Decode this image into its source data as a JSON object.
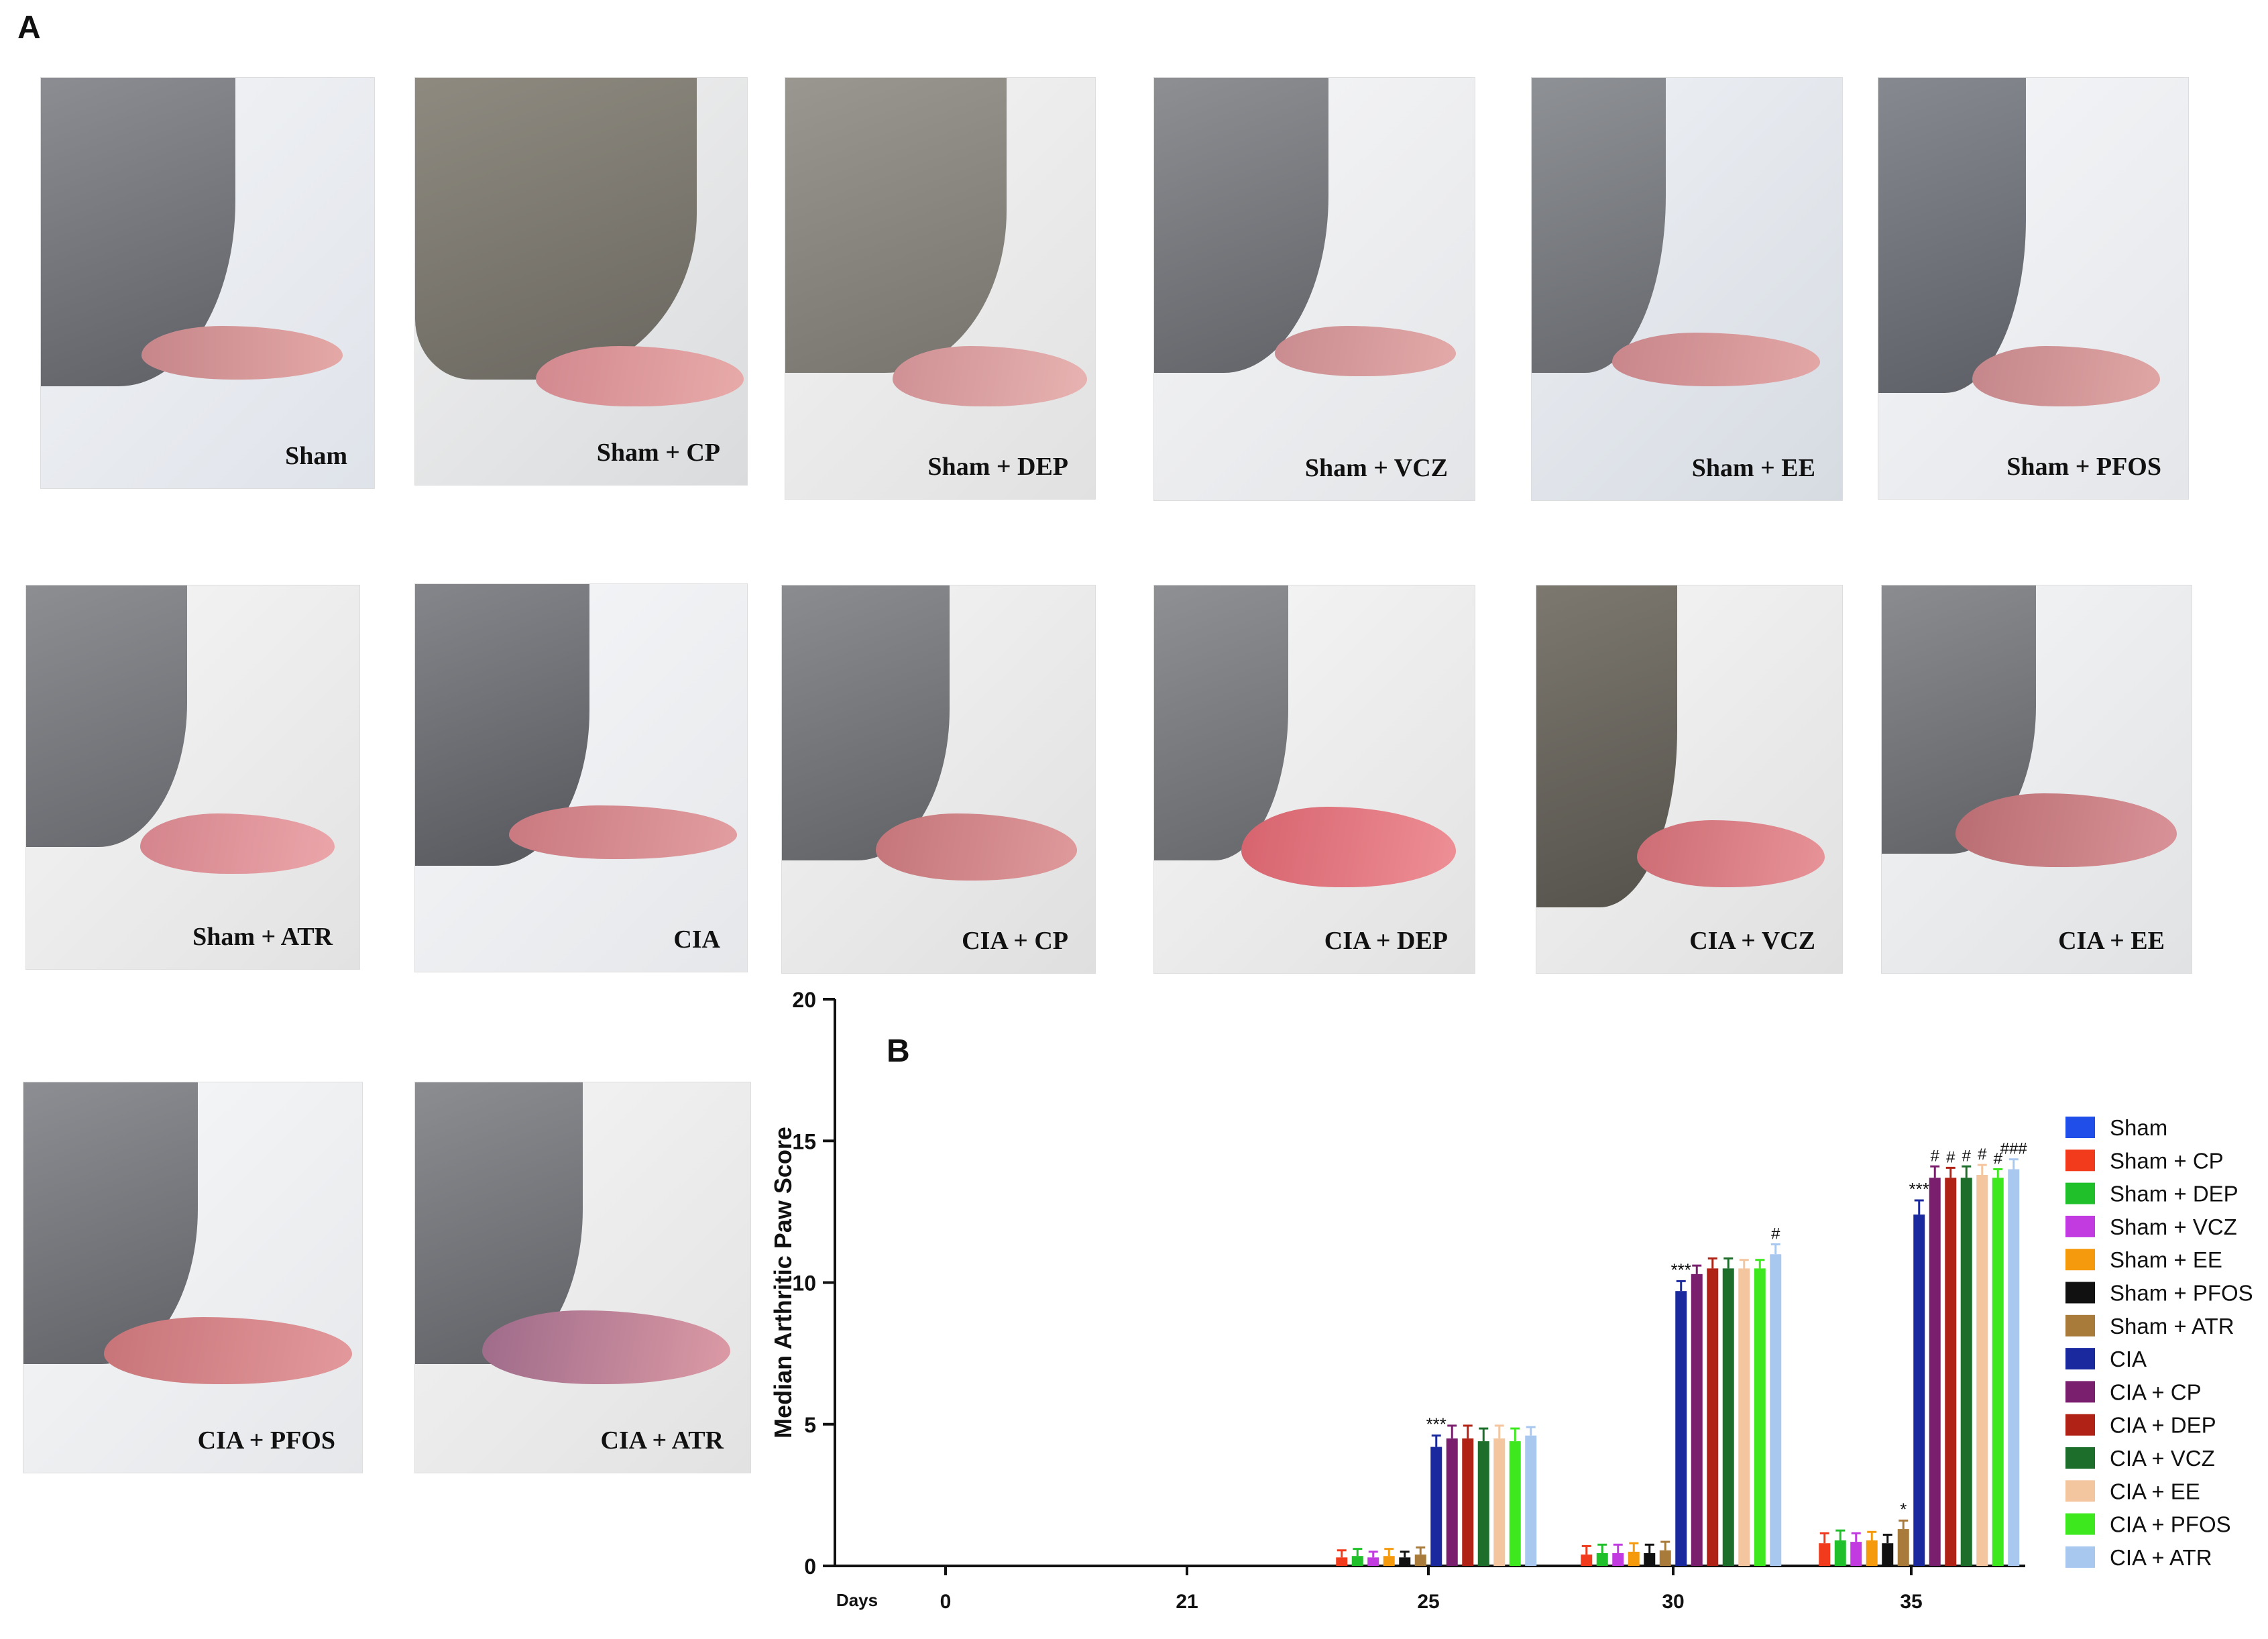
{
  "panels": {
    "a_label": "A",
    "b_label": "B"
  },
  "photos": [
    {
      "label": "Sham"
    },
    {
      "label": "Sham + CP"
    },
    {
      "label": "Sham + DEP"
    },
    {
      "label": "Sham + VCZ"
    },
    {
      "label": "Sham + EE"
    },
    {
      "label": "Sham + PFOS"
    },
    {
      "label": "Sham + ATR"
    },
    {
      "label": "CIA"
    },
    {
      "label": "CIA + CP"
    },
    {
      "label": "CIA + DEP"
    },
    {
      "label": "CIA + VCZ"
    },
    {
      "label": "CIA + EE"
    },
    {
      "label": "CIA + PFOS"
    },
    {
      "label": "CIA + ATR"
    }
  ],
  "chart_data": {
    "type": "bar",
    "title": "",
    "xlabel": "Days",
    "ylabel": "Median Arthritic Paw Score",
    "ylim": [
      0,
      20
    ],
    "yticks": [
      "0",
      "5",
      "10",
      "15",
      "20"
    ],
    "categories": [
      "0",
      "21",
      "25",
      "30",
      "35"
    ],
    "legend_position": "right",
    "series": [
      {
        "name": "Sham",
        "color": "#1f4fe8",
        "values": [
          0,
          0,
          0,
          0,
          0
        ],
        "errors": [
          0,
          0,
          0,
          0,
          0
        ]
      },
      {
        "name": "Sham + CP",
        "color": "#f23a1c",
        "values": [
          0,
          0,
          0.3,
          0.4,
          0.8
        ],
        "errors": [
          0,
          0,
          0.25,
          0.3,
          0.35
        ]
      },
      {
        "name": "Sham + DEP",
        "color": "#1fc02a",
        "values": [
          0,
          0,
          0.35,
          0.45,
          0.9
        ],
        "errors": [
          0,
          0,
          0.25,
          0.3,
          0.35
        ]
      },
      {
        "name": "Sham + VCZ",
        "color": "#c13be0",
        "values": [
          0,
          0,
          0.3,
          0.45,
          0.85
        ],
        "errors": [
          0,
          0,
          0.2,
          0.3,
          0.3
        ]
      },
      {
        "name": "Sham + EE",
        "color": "#f59a0c",
        "values": [
          0,
          0,
          0.35,
          0.5,
          0.9
        ],
        "errors": [
          0,
          0,
          0.25,
          0.3,
          0.3
        ]
      },
      {
        "name": "Sham + PFOS",
        "color": "#111111",
        "values": [
          0,
          0,
          0.3,
          0.45,
          0.8
        ],
        "errors": [
          0,
          0,
          0.2,
          0.3,
          0.3
        ]
      },
      {
        "name": "Sham + ATR",
        "color": "#a87b3b",
        "values": [
          0,
          0,
          0.4,
          0.55,
          1.3
        ],
        "errors": [
          0,
          0,
          0.25,
          0.3,
          0.3
        ]
      },
      {
        "name": "CIA",
        "color": "#1a2a9e",
        "values": [
          0,
          0,
          4.2,
          9.7,
          12.4
        ],
        "errors": [
          0,
          0,
          0.4,
          0.35,
          0.5
        ]
      },
      {
        "name": "CIA + CP",
        "color": "#7a1f6e",
        "values": [
          0,
          0,
          4.5,
          10.3,
          13.7
        ],
        "errors": [
          0,
          0,
          0.45,
          0.3,
          0.4
        ]
      },
      {
        "name": "CIA + DEP",
        "color": "#b02216",
        "values": [
          0,
          0,
          4.5,
          10.5,
          13.7
        ],
        "errors": [
          0,
          0,
          0.45,
          0.35,
          0.35
        ]
      },
      {
        "name": "CIA + VCZ",
        "color": "#1c6e2a",
        "values": [
          0,
          0,
          4.4,
          10.5,
          13.7
        ],
        "errors": [
          0,
          0,
          0.45,
          0.35,
          0.4
        ]
      },
      {
        "name": "CIA + EE",
        "color": "#f4c6a0",
        "values": [
          0,
          0,
          4.5,
          10.5,
          13.8
        ],
        "errors": [
          0,
          0,
          0.45,
          0.3,
          0.35
        ]
      },
      {
        "name": "CIA + PFOS",
        "color": "#3ee81f",
        "values": [
          0,
          0,
          4.4,
          10.5,
          13.7
        ],
        "errors": [
          0,
          0,
          0.45,
          0.3,
          0.3
        ]
      },
      {
        "name": "CIA + ATR",
        "color": "#a9c8f0",
        "values": [
          0,
          0,
          4.6,
          11.0,
          14.0
        ],
        "errors": [
          0,
          0,
          0.3,
          0.35,
          0.35
        ]
      }
    ],
    "annotations": [
      {
        "category": "25",
        "series": "CIA",
        "text": "***"
      },
      {
        "category": "30",
        "series": "CIA",
        "text": "***"
      },
      {
        "category": "30",
        "series": "CIA + ATR",
        "text": "#"
      },
      {
        "category": "35",
        "series": "CIA",
        "text": "***"
      },
      {
        "category": "35",
        "series": "Sham + ATR",
        "text": "*"
      },
      {
        "category": "35",
        "series": "CIA + CP",
        "text": "#"
      },
      {
        "category": "35",
        "series": "CIA + DEP",
        "text": "#"
      },
      {
        "category": "35",
        "series": "CIA + VCZ",
        "text": "#"
      },
      {
        "category": "35",
        "series": "CIA + EE",
        "text": "#"
      },
      {
        "category": "35",
        "series": "CIA + PFOS",
        "text": "#"
      },
      {
        "category": "35",
        "series": "CIA + ATR",
        "text": "###"
      }
    ],
    "grid": false
  }
}
